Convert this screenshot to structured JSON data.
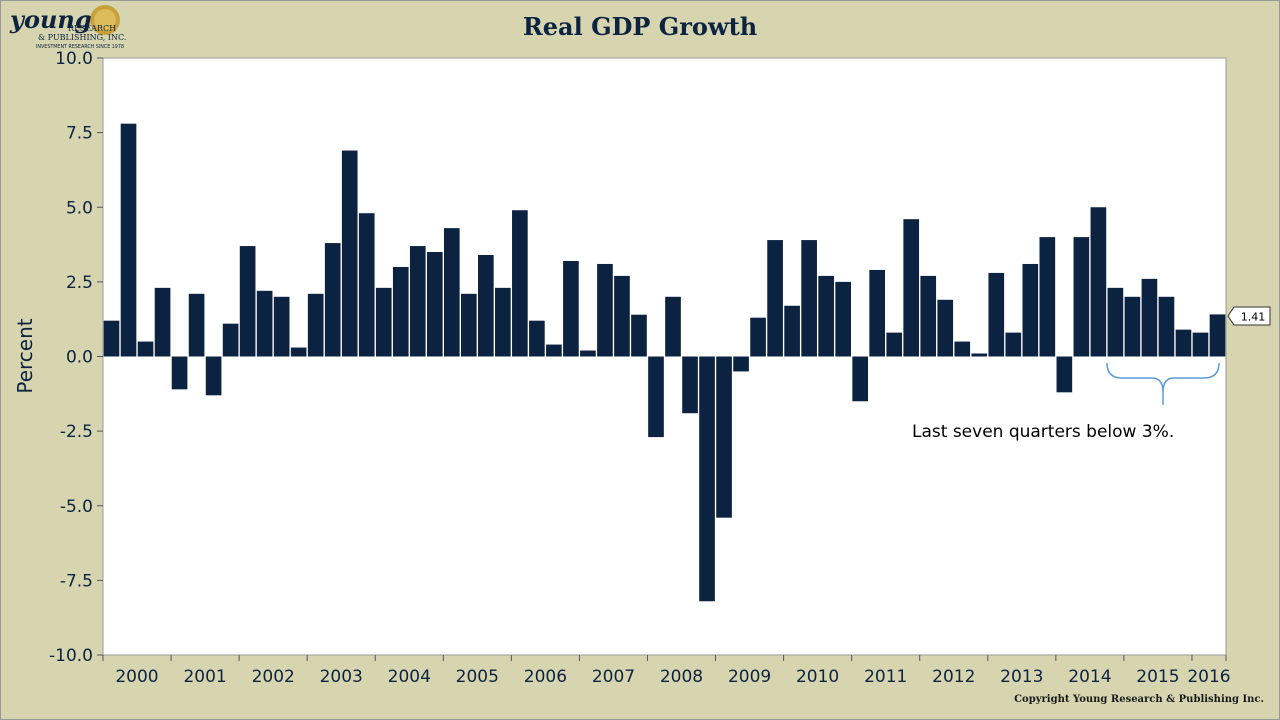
{
  "logo": {
    "brand": "young",
    "line1": "RESEARCH",
    "line2": "& PUBLISHING, INC.",
    "tagline": "INVESTMENT RESEARCH SINCE 1978"
  },
  "copyright": "Copyright Young Research & Publishing Inc.",
  "chart_data": {
    "type": "bar",
    "title": "Real GDP Growth",
    "ylabel": "Percent",
    "xlabel": "",
    "ylim": [
      -10.0,
      10.0
    ],
    "yticks": [
      "10.0",
      "7.5",
      "5.0",
      "2.5",
      "0.0",
      "-2.5",
      "-5.0",
      "-7.5",
      "-10.0"
    ],
    "ytick_values": [
      10.0,
      7.5,
      5.0,
      2.5,
      0.0,
      -2.5,
      -5.0,
      -7.5,
      -10.0
    ],
    "grid": false,
    "years": [
      "2000",
      "2001",
      "2002",
      "2003",
      "2004",
      "2005",
      "2006",
      "2007",
      "2008",
      "2009",
      "2010",
      "2011",
      "2012",
      "2013",
      "2014",
      "2015",
      "2016"
    ],
    "values": [
      1.2,
      7.8,
      0.5,
      2.3,
      -1.1,
      2.1,
      -1.3,
      1.1,
      3.7,
      2.2,
      2.0,
      0.3,
      2.1,
      3.8,
      6.9,
      4.8,
      2.3,
      3.0,
      3.7,
      3.5,
      4.3,
      2.1,
      3.4,
      2.3,
      4.9,
      1.2,
      0.4,
      3.2,
      0.2,
      3.1,
      2.7,
      1.4,
      -2.7,
      2.0,
      -1.9,
      -8.2,
      -5.4,
      -0.5,
      1.3,
      3.9,
      1.7,
      3.9,
      2.7,
      2.5,
      -1.5,
      2.9,
      0.8,
      4.6,
      2.7,
      1.9,
      0.5,
      0.1,
      2.8,
      0.8,
      3.1,
      4.0,
      -1.2,
      4.0,
      5.0,
      2.3,
      2.0,
      2.6,
      2.0,
      0.9,
      0.8,
      1.41
    ],
    "last_value_label": "1.41",
    "annotation": "Last seven quarters below 3%."
  }
}
